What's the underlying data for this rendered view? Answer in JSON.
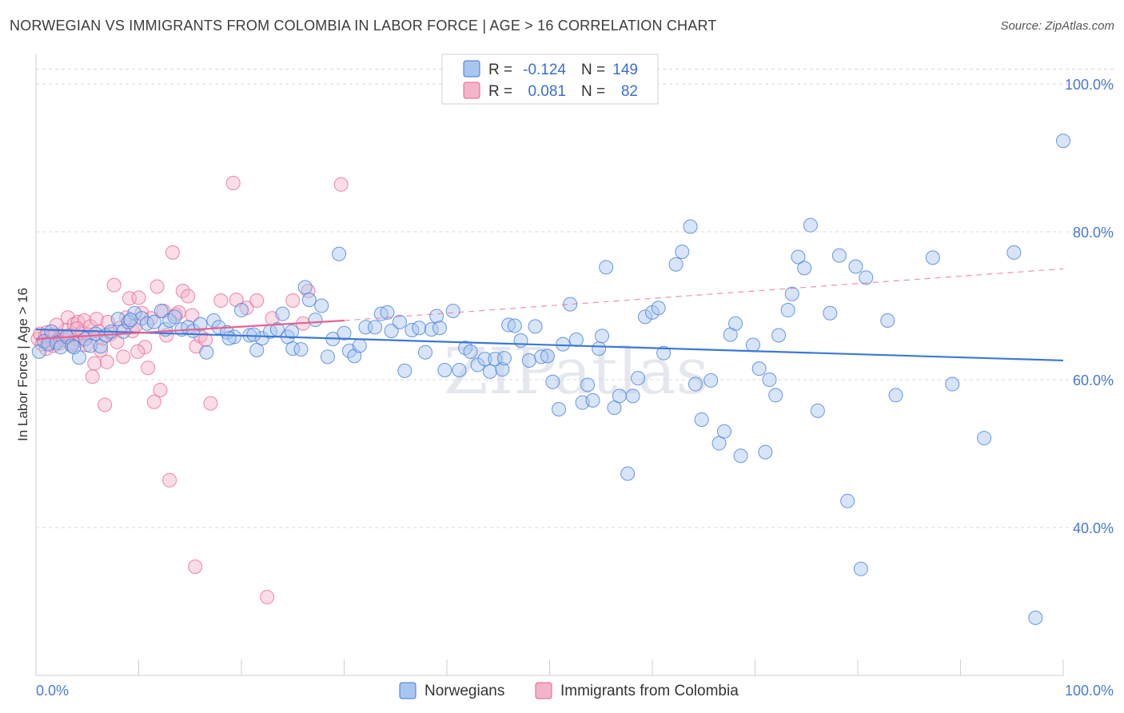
{
  "title": "NORWEGIAN VS IMMIGRANTS FROM COLOMBIA IN LABOR FORCE | AGE > 16 CORRELATION CHART",
  "source": "Source: ZipAtlas.com",
  "watermark": "ZIPatlas",
  "colors": {
    "blue": "#3b78d8",
    "blue_fill": "#a9c6f0",
    "pink": "#e8628f",
    "pink_fill": "#f3b4c9",
    "grid": "#d9d9d9",
    "tick_text": "#4a7bd0"
  },
  "legend": {
    "rows": [
      {
        "r_label": "R =",
        "r_value": "-0.124",
        "n_label": "N =",
        "n_value": "149"
      },
      {
        "r_label": "R =",
        "r_value": "0.081",
        "n_label": "N =",
        "n_value": "82"
      }
    ]
  },
  "bottom_legend": [
    "Norwegians",
    "Immigrants from Colombia"
  ],
  "chart_data": {
    "type": "scatter",
    "title": "NORWEGIAN VS IMMIGRANTS FROM COLOMBIA IN LABOR FORCE | AGE > 16 CORRELATION CHART",
    "xlabel": "",
    "ylabel": "In Labor Force | Age > 16",
    "xlim": [
      0,
      100
    ],
    "ylim": [
      20,
      104
    ],
    "x_tick_labels": [
      "0.0%",
      "100.0%"
    ],
    "y_ticks": [
      40,
      60,
      80,
      100
    ],
    "y_tick_labels": [
      "40.0%",
      "60.0%",
      "80.0%",
      "100.0%"
    ],
    "grid": true,
    "legend_position": "top-center",
    "series": [
      {
        "name": "Norwegians",
        "color": "#3b78d8",
        "trend": {
          "x": [
            0,
            100
          ],
          "y": [
            66.8,
            62.6
          ],
          "style": "solid"
        },
        "points": [
          [
            0.3,
            63.8
          ],
          [
            0.8,
            65.2
          ],
          [
            1.2,
            64.8
          ],
          [
            1.5,
            66.5
          ],
          [
            2.0,
            65.0
          ],
          [
            2.4,
            64.4
          ],
          [
            3.0,
            65.8
          ],
          [
            3.5,
            64.6
          ],
          [
            4.2,
            63.0
          ],
          [
            4.8,
            65.5
          ],
          [
            5.3,
            64.6
          ],
          [
            5.8,
            66.2
          ],
          [
            6.3,
            64.5
          ],
          [
            6.8,
            66.0
          ],
          [
            7.3,
            66.5
          ],
          [
            8.0,
            68.2
          ],
          [
            8.5,
            66.5
          ],
          [
            9.0,
            67.8
          ],
          [
            9.6,
            69.0
          ],
          [
            10.3,
            68.3
          ],
          [
            10.8,
            67.6
          ],
          [
            11.5,
            67.8
          ],
          [
            12.2,
            69.3
          ],
          [
            12.6,
            66.8
          ],
          [
            13.0,
            68.0
          ],
          [
            13.5,
            68.5
          ],
          [
            14.2,
            66.8
          ],
          [
            14.8,
            67.1
          ],
          [
            15.3,
            66.6
          ],
          [
            16.0,
            67.5
          ],
          [
            16.6,
            63.7
          ],
          [
            17.3,
            68.0
          ],
          [
            17.8,
            67.1
          ],
          [
            18.6,
            66.4
          ],
          [
            19.3,
            65.8
          ],
          [
            20.0,
            69.4
          ],
          [
            20.8,
            66.0
          ],
          [
            21.5,
            64.0
          ],
          [
            22.0,
            65.6
          ],
          [
            22.8,
            66.5
          ],
          [
            23.5,
            66.8
          ],
          [
            24.0,
            68.9
          ],
          [
            24.5,
            65.8
          ],
          [
            25.0,
            64.2
          ],
          [
            25.8,
            64.1
          ],
          [
            26.2,
            72.5
          ],
          [
            26.6,
            70.8
          ],
          [
            27.2,
            68.1
          ],
          [
            27.8,
            70.0
          ],
          [
            28.4,
            63.1
          ],
          [
            28.9,
            65.5
          ],
          [
            29.5,
            77.0
          ],
          [
            30.0,
            66.3
          ],
          [
            30.5,
            63.9
          ],
          [
            31.0,
            63.2
          ],
          [
            31.5,
            64.6
          ],
          [
            32.1,
            67.1
          ],
          [
            33.0,
            67.1
          ],
          [
            33.6,
            68.9
          ],
          [
            34.2,
            69.1
          ],
          [
            34.6,
            66.6
          ],
          [
            35.4,
            67.8
          ],
          [
            35.9,
            61.2
          ],
          [
            36.6,
            66.7
          ],
          [
            37.3,
            67.0
          ],
          [
            37.9,
            63.7
          ],
          [
            38.5,
            66.8
          ],
          [
            39.0,
            68.6
          ],
          [
            39.8,
            61.3
          ],
          [
            40.6,
            69.3
          ],
          [
            41.2,
            61.3
          ],
          [
            41.8,
            64.3
          ],
          [
            42.3,
            63.8
          ],
          [
            43.0,
            62.0
          ],
          [
            43.7,
            62.8
          ],
          [
            44.2,
            61.1
          ],
          [
            44.7,
            62.8
          ],
          [
            45.4,
            61.4
          ],
          [
            46.0,
            67.4
          ],
          [
            46.6,
            67.3
          ],
          [
            47.2,
            65.3
          ],
          [
            48.0,
            62.6
          ],
          [
            48.6,
            67.2
          ],
          [
            49.2,
            63.1
          ],
          [
            49.8,
            63.2
          ],
          [
            50.3,
            59.7
          ],
          [
            50.9,
            56.0
          ],
          [
            51.3,
            64.8
          ],
          [
            52.0,
            70.2
          ],
          [
            52.6,
            65.4
          ],
          [
            53.2,
            56.9
          ],
          [
            53.7,
            59.3
          ],
          [
            54.2,
            57.2
          ],
          [
            54.8,
            64.2
          ],
          [
            55.5,
            75.2
          ],
          [
            55.1,
            65.9
          ],
          [
            56.3,
            56.2
          ],
          [
            56.8,
            57.8
          ],
          [
            57.6,
            47.3
          ],
          [
            58.1,
            57.8
          ],
          [
            58.6,
            60.2
          ],
          [
            59.3,
            68.5
          ],
          [
            60.0,
            69.1
          ],
          [
            60.6,
            69.7
          ],
          [
            61.1,
            63.6
          ],
          [
            62.3,
            75.6
          ],
          [
            62.9,
            77.3
          ],
          [
            63.7,
            80.7
          ],
          [
            64.2,
            59.4
          ],
          [
            64.8,
            54.6
          ],
          [
            65.7,
            59.9
          ],
          [
            66.5,
            51.4
          ],
          [
            67.0,
            53.0
          ],
          [
            67.6,
            66.1
          ],
          [
            68.1,
            67.6
          ],
          [
            68.6,
            49.7
          ],
          [
            69.8,
            64.7
          ],
          [
            70.4,
            61.5
          ],
          [
            71.0,
            50.2
          ],
          [
            71.4,
            60.0
          ],
          [
            72.0,
            57.9
          ],
          [
            72.3,
            66.0
          ],
          [
            73.2,
            69.4
          ],
          [
            73.6,
            71.6
          ],
          [
            74.2,
            76.6
          ],
          [
            74.8,
            75.1
          ],
          [
            75.4,
            80.9
          ],
          [
            76.1,
            55.8
          ],
          [
            77.3,
            69.0
          ],
          [
            78.2,
            76.8
          ],
          [
            79.0,
            43.6
          ],
          [
            79.8,
            75.3
          ],
          [
            80.3,
            34.4
          ],
          [
            80.8,
            73.8
          ],
          [
            82.9,
            68.0
          ],
          [
            83.7,
            57.9
          ],
          [
            87.3,
            76.5
          ],
          [
            89.2,
            59.4
          ],
          [
            92.3,
            52.1
          ],
          [
            95.2,
            77.2
          ],
          [
            97.3,
            27.8
          ],
          [
            100.0,
            92.3
          ],
          [
            45.6,
            62.9
          ],
          [
            39.3,
            67.0
          ],
          [
            24.9,
            66.5
          ],
          [
            18.8,
            65.6
          ],
          [
            21.2,
            66.1
          ],
          [
            9.2,
            68.1
          ],
          [
            3.7,
            64.4
          ]
        ]
      },
      {
        "name": "Immigrants from Colombia",
        "color": "#e8628f",
        "trend": {
          "x": [
            0,
            30
          ],
          "y": [
            65.5,
            68.0
          ],
          "style": "solid",
          "extended_x": [
            30,
            100
          ],
          "extended_y": [
            68.0,
            75.0
          ],
          "extended_style": "dashed"
        },
        "points": [
          [
            0.2,
            65.5
          ],
          [
            0.4,
            66.2
          ],
          [
            0.6,
            64.8
          ],
          [
            0.9,
            65.8
          ],
          [
            1.1,
            66.4
          ],
          [
            1.3,
            65.0
          ],
          [
            1.5,
            65.7
          ],
          [
            1.7,
            64.6
          ],
          [
            1.9,
            66.1
          ],
          [
            2.1,
            65.3
          ],
          [
            2.3,
            64.9
          ],
          [
            2.5,
            65.9
          ],
          [
            2.7,
            65.4
          ],
          [
            2.9,
            66.7
          ],
          [
            3.1,
            68.4
          ],
          [
            3.3,
            66.0
          ],
          [
            3.5,
            64.8
          ],
          [
            3.7,
            67.5
          ],
          [
            3.9,
            65.5
          ],
          [
            4.1,
            67.8
          ],
          [
            4.3,
            65.3
          ],
          [
            4.5,
            66.4
          ],
          [
            4.7,
            68.0
          ],
          [
            4.9,
            64.7
          ],
          [
            5.1,
            66.1
          ],
          [
            5.3,
            67.2
          ],
          [
            5.5,
            60.4
          ],
          [
            5.7,
            62.2
          ],
          [
            5.9,
            68.2
          ],
          [
            6.1,
            66.5
          ],
          [
            6.3,
            64.0
          ],
          [
            6.5,
            65.6
          ],
          [
            6.7,
            56.6
          ],
          [
            7.0,
            67.8
          ],
          [
            7.3,
            66.2
          ],
          [
            7.6,
            72.8
          ],
          [
            7.9,
            65.1
          ],
          [
            8.2,
            67.0
          ],
          [
            8.5,
            63.1
          ],
          [
            8.8,
            68.4
          ],
          [
            9.1,
            71.0
          ],
          [
            9.4,
            66.6
          ],
          [
            9.7,
            67.3
          ],
          [
            10.0,
            71.1
          ],
          [
            10.3,
            69.0
          ],
          [
            10.6,
            64.4
          ],
          [
            10.9,
            61.6
          ],
          [
            11.2,
            68.3
          ],
          [
            11.5,
            57.0
          ],
          [
            11.8,
            72.6
          ],
          [
            12.1,
            58.6
          ],
          [
            12.4,
            69.3
          ],
          [
            12.7,
            66.0
          ],
          [
            13.0,
            46.4
          ],
          [
            13.3,
            77.2
          ],
          [
            13.6,
            68.8
          ],
          [
            13.9,
            69.1
          ],
          [
            14.3,
            72.0
          ],
          [
            14.8,
            71.3
          ],
          [
            15.2,
            68.7
          ],
          [
            15.6,
            64.5
          ],
          [
            16.0,
            65.9
          ],
          [
            16.5,
            65.4
          ],
          [
            17.0,
            56.8
          ],
          [
            18.0,
            70.7
          ],
          [
            19.5,
            70.8
          ],
          [
            20.5,
            69.7
          ],
          [
            21.5,
            70.7
          ],
          [
            23.0,
            68.3
          ],
          [
            25.0,
            70.7
          ],
          [
            26.0,
            67.6
          ],
          [
            26.5,
            72.0
          ],
          [
            22.5,
            30.6
          ],
          [
            15.5,
            34.7
          ],
          [
            19.2,
            86.6
          ],
          [
            29.7,
            86.4
          ],
          [
            6.9,
            62.4
          ],
          [
            4.0,
            66.9
          ],
          [
            2.0,
            67.4
          ],
          [
            1.0,
            64.2
          ],
          [
            3.6,
            65.0
          ],
          [
            9.9,
            63.8
          ]
        ]
      }
    ]
  }
}
